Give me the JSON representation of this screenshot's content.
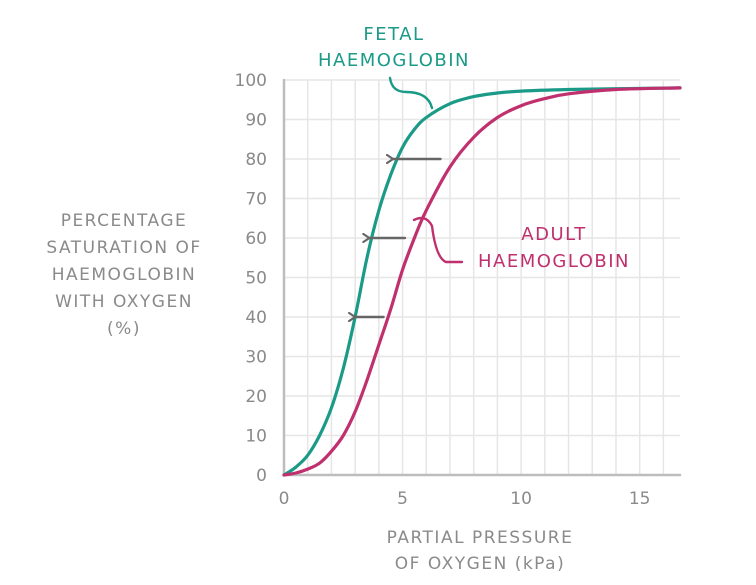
{
  "chart_data": {
    "type": "line",
    "xlabel": [
      "PARTIAL PRESSURE",
      "OF OXYGEN (kPa)"
    ],
    "ylabel": [
      "PERCENTAGE",
      "SATURATION OF",
      "HAEMOGLOBIN",
      "WITH OXYGEN",
      "(%)"
    ],
    "xlim": [
      0,
      16.7
    ],
    "ylim": [
      0,
      100
    ],
    "xticks": [
      0,
      5,
      10,
      15
    ],
    "yticks": [
      0,
      10,
      20,
      30,
      40,
      50,
      60,
      70,
      80,
      90,
      100
    ],
    "grid": true,
    "series": [
      {
        "name": [
          "FETAL",
          "HAEMOGLOBIN"
        ],
        "color": "#1a9a87",
        "x": [
          0,
          0.5,
          1,
          1.5,
          2,
          2.5,
          3,
          3.5,
          4,
          4.5,
          5,
          5.5,
          6,
          7,
          8,
          9,
          10,
          12,
          14,
          16.7
        ],
        "y": [
          0,
          2,
          5,
          10,
          17,
          27,
          40,
          55,
          67,
          76,
          83,
          87.5,
          90.5,
          94,
          95.8,
          96.7,
          97.2,
          97.6,
          97.8,
          98
        ]
      },
      {
        "name": [
          "ADULT",
          "HAEMOGLOBIN"
        ],
        "color": "#c0306e",
        "x": [
          0,
          0.5,
          1,
          1.5,
          2,
          2.5,
          3,
          3.5,
          4,
          4.5,
          5,
          5.5,
          6,
          7,
          8,
          9,
          10,
          11,
          12,
          14,
          16.7
        ],
        "y": [
          0,
          0.5,
          1.5,
          3,
          6,
          10,
          16,
          24,
          33,
          42,
          52,
          60,
          67,
          78,
          85.5,
          90.5,
          93.5,
          95.3,
          96.5,
          97.6,
          98
        ]
      }
    ],
    "arrows": [
      {
        "y": 80,
        "x_from": 6.6,
        "x_to": 4.6
      },
      {
        "y": 60,
        "x_from": 5.1,
        "x_to": 3.6
      },
      {
        "y": 40,
        "x_from": 4.2,
        "x_to": 3.0
      }
    ],
    "arrow_color": "#666666",
    "axis_color": "#bdbdbd",
    "grid_color": "#e6e6e6"
  }
}
